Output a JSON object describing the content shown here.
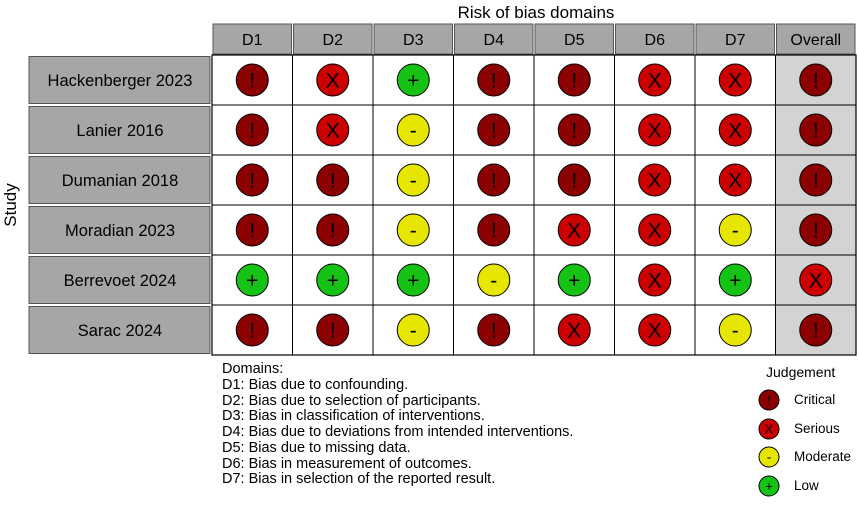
{
  "chart_data": {
    "type": "table",
    "title": "Risk of bias domains",
    "ylabel": "Study",
    "columns": [
      "D1",
      "D2",
      "D3",
      "D4",
      "D5",
      "D6",
      "D7",
      "Overall"
    ],
    "studies": [
      {
        "name": "Hackenberger 2023",
        "judgements": [
          "critical",
          "serious",
          "low",
          "critical",
          "critical",
          "serious",
          "serious",
          "critical"
        ]
      },
      {
        "name": "Lanier 2016",
        "judgements": [
          "critical",
          "serious",
          "moderate",
          "critical",
          "critical",
          "serious",
          "serious",
          "critical"
        ]
      },
      {
        "name": "Dumanian 2018",
        "judgements": [
          "critical",
          "critical",
          "moderate",
          "critical",
          "critical",
          "serious",
          "serious",
          "critical"
        ]
      },
      {
        "name": "Moradian 2023",
        "judgements": [
          "critical",
          "critical",
          "moderate",
          "critical",
          "serious",
          "serious",
          "moderate",
          "critical"
        ]
      },
      {
        "name": "Berrevoet 2024",
        "judgements": [
          "low",
          "low",
          "low",
          "moderate",
          "low",
          "serious",
          "low",
          "serious"
        ]
      },
      {
        "name": "Sarac 2024",
        "judgements": [
          "critical",
          "critical",
          "moderate",
          "critical",
          "serious",
          "serious",
          "moderate",
          "critical"
        ]
      }
    ],
    "judgement_styles": {
      "critical": {
        "symbol": "!",
        "color": "#8b0000"
      },
      "serious": {
        "symbol": "X",
        "color": "#cc0000"
      },
      "moderate": {
        "symbol": "-",
        "color": "#e6e600"
      },
      "low": {
        "symbol": "+",
        "color": "#14c314"
      }
    }
  },
  "domains": {
    "heading": "Domains:",
    "items": [
      "D1: Bias due to confounding.",
      "D2: Bias due to selection of participants.",
      "D3: Bias in classification of interventions.",
      "D4: Bias due to deviations from intended interventions.",
      "D5: Bias due to missing data.",
      "D6: Bias in measurement of outcomes.",
      "D7: Bias in selection of the reported result."
    ]
  },
  "legend": {
    "title": "Judgement",
    "items": [
      {
        "key": "critical",
        "label": "Critical"
      },
      {
        "key": "serious",
        "label": "Serious"
      },
      {
        "key": "moderate",
        "label": "Moderate"
      },
      {
        "key": "low",
        "label": "Low"
      }
    ]
  },
  "colors": {
    "header_fill": "#a6a6a6",
    "label_fill": "#a6a6a6",
    "overall_fill": "#d3d3d3",
    "grid": "#000000"
  }
}
